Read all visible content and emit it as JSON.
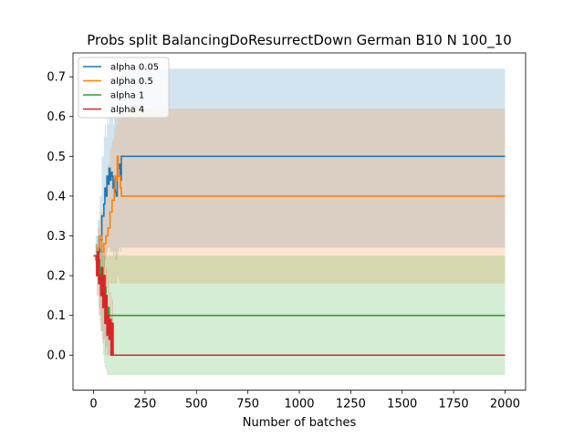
{
  "chart_data": {
    "type": "line",
    "title": "Probs split BalancingDoResurrectDown German B10 N 100_10",
    "xlabel": "Number of batches",
    "ylabel": "",
    "xlim": [
      -100,
      2100
    ],
    "ylim": [
      -0.088,
      0.76
    ],
    "xticks": [
      0,
      250,
      500,
      750,
      1000,
      1250,
      1500,
      1750,
      2000
    ],
    "yticks": [
      0.0,
      0.1,
      0.2,
      0.3,
      0.4,
      0.5,
      0.6,
      0.7
    ],
    "ytick_labels": [
      "0.0",
      "0.1",
      "0.2",
      "0.3",
      "0.4",
      "0.5",
      "0.6",
      "0.7"
    ],
    "grid": false,
    "legend_position": "top-left",
    "series": [
      {
        "name": "alpha 0.05",
        "color": "#1f77b4",
        "x": [
          0,
          10,
          20,
          30,
          40,
          50,
          55,
          60,
          65,
          70,
          75,
          80,
          85,
          90,
          95,
          100,
          105,
          110,
          115,
          120,
          125,
          130,
          135,
          2000
        ],
        "y": [
          0.25,
          0.25,
          0.26,
          0.29,
          0.35,
          0.38,
          0.42,
          0.4,
          0.45,
          0.43,
          0.47,
          0.44,
          0.46,
          0.45,
          0.42,
          0.44,
          0.41,
          0.4,
          0.45,
          0.47,
          0.48,
          0.44,
          0.5,
          0.5
        ],
        "band_lower": [
          0.25,
          0.2,
          0.18,
          0.16,
          0.2,
          0.22,
          0.24,
          0.25,
          0.26,
          0.27,
          0.27,
          0.26,
          0.26,
          0.26,
          0.25,
          0.26,
          0.24,
          0.24,
          0.25,
          0.26,
          0.27,
          0.26,
          0.27,
          0.27
        ],
        "band_upper": [
          0.25,
          0.3,
          0.34,
          0.4,
          0.5,
          0.55,
          0.58,
          0.55,
          0.6,
          0.58,
          0.62,
          0.6,
          0.62,
          0.6,
          0.58,
          0.62,
          0.6,
          0.6,
          0.65,
          0.68,
          0.7,
          0.68,
          0.72,
          0.72
        ]
      },
      {
        "name": "alpha 0.5",
        "color": "#ff7f0e",
        "x": [
          0,
          10,
          20,
          30,
          40,
          50,
          60,
          70,
          80,
          90,
          100,
          105,
          110,
          115,
          120,
          125,
          130,
          135,
          140,
          2000
        ],
        "y": [
          0.25,
          0.24,
          0.27,
          0.3,
          0.26,
          0.28,
          0.3,
          0.32,
          0.36,
          0.39,
          0.42,
          0.45,
          0.44,
          0.5,
          0.45,
          0.45,
          0.42,
          0.4,
          0.4,
          0.4
        ],
        "band_lower": [
          0.25,
          0.2,
          0.18,
          0.16,
          0.15,
          0.16,
          0.17,
          0.18,
          0.18,
          0.18,
          0.18,
          0.18,
          0.18,
          0.2,
          0.19,
          0.18,
          0.18,
          0.18,
          0.18,
          0.18
        ],
        "band_upper": [
          0.25,
          0.28,
          0.32,
          0.36,
          0.36,
          0.4,
          0.44,
          0.48,
          0.52,
          0.54,
          0.57,
          0.6,
          0.58,
          0.62,
          0.6,
          0.6,
          0.62,
          0.62,
          0.62,
          0.62
        ]
      },
      {
        "name": "alpha 1",
        "color": "#2ca02c",
        "x": [
          0,
          10,
          20,
          25,
          30,
          35,
          40,
          45,
          50,
          55,
          60,
          65,
          70,
          75,
          80,
          85,
          90,
          95,
          2000
        ],
        "y": [
          0.25,
          0.25,
          0.26,
          0.24,
          0.2,
          0.22,
          0.18,
          0.15,
          0.2,
          0.17,
          0.14,
          0.1,
          0.12,
          0.1,
          0.1,
          0.1,
          0.1,
          0.1,
          0.1
        ],
        "band_lower": [
          0.25,
          0.22,
          0.2,
          0.12,
          0.08,
          0.06,
          0.04,
          0.0,
          -0.02,
          -0.03,
          -0.04,
          -0.05,
          -0.05,
          -0.05,
          -0.05,
          -0.05,
          -0.05,
          -0.05,
          -0.05
        ],
        "band_upper": [
          0.25,
          0.28,
          0.3,
          0.3,
          0.27,
          0.27,
          0.26,
          0.25,
          0.25,
          0.25,
          0.25,
          0.25,
          0.25,
          0.25,
          0.25,
          0.25,
          0.25,
          0.25,
          0.25
        ]
      },
      {
        "name": "alpha 4",
        "color": "#d62728",
        "x": [
          0,
          10,
          15,
          20,
          25,
          30,
          35,
          40,
          45,
          50,
          55,
          60,
          65,
          70,
          75,
          80,
          85,
          90,
          95,
          2000
        ],
        "y": [
          0.25,
          0.25,
          0.2,
          0.26,
          0.18,
          0.2,
          0.15,
          0.22,
          0.12,
          0.2,
          0.08,
          0.15,
          0.05,
          0.1,
          0.04,
          0.09,
          0.0,
          0.08,
          0.0,
          0.0
        ],
        "band_lower": [
          0.25,
          0.22,
          0.15,
          0.15,
          0.1,
          0.1,
          0.06,
          0.06,
          0.03,
          0.04,
          0.0,
          0.02,
          0.0,
          0.0,
          0.0,
          0.0,
          0.0,
          0.0,
          0.0,
          0.0
        ],
        "band_upper": [
          0.25,
          0.28,
          0.26,
          0.3,
          0.25,
          0.27,
          0.22,
          0.28,
          0.2,
          0.26,
          0.16,
          0.22,
          0.13,
          0.18,
          0.12,
          0.16,
          0.1,
          0.14,
          0.0,
          0.0
        ]
      }
    ]
  }
}
